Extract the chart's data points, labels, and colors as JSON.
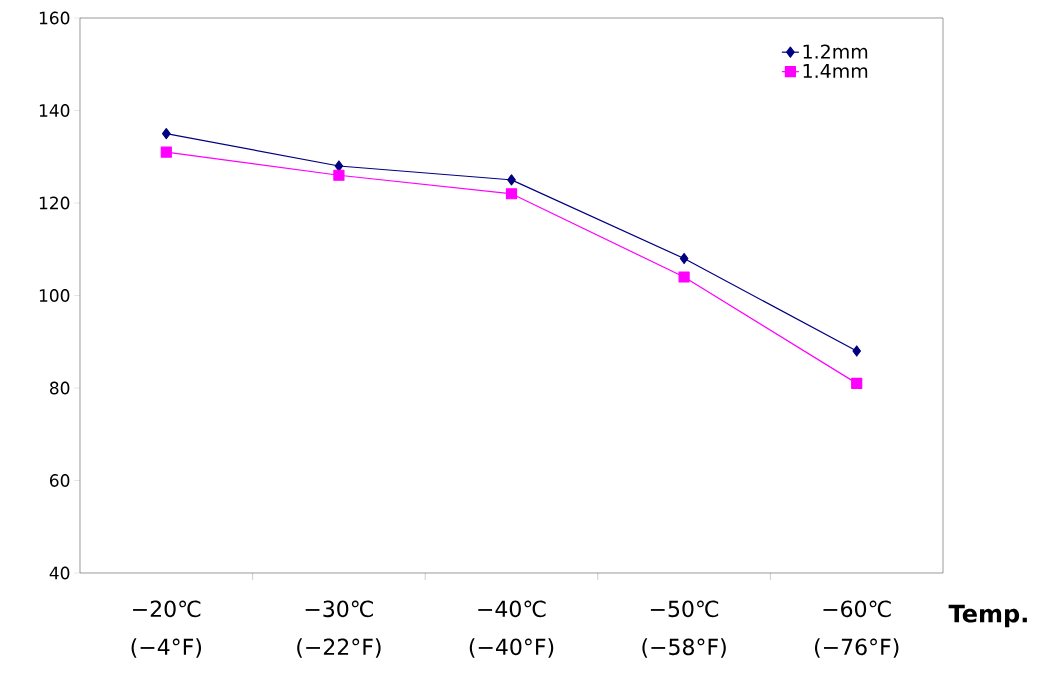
{
  "chart_data": {
    "type": "line",
    "xlabel": "Temp.",
    "categories": [
      "−20℃ (−4°F)",
      "−30℃ (−22°F)",
      "−40℃ (−40°F)",
      "−50℃ (−58°F)",
      "−60℃ (−76°F)"
    ],
    "series": [
      {
        "name": "1.2mm",
        "color": "#000080",
        "marker": "diamond",
        "values": [
          135,
          128,
          125,
          108,
          88
        ]
      },
      {
        "name": "1.4mm",
        "color": "#ff00ff",
        "marker": "square",
        "values": [
          131,
          126,
          122,
          104,
          81
        ]
      }
    ],
    "ylim": [
      40,
      160
    ],
    "yticks": [
      40,
      60,
      80,
      100,
      120,
      140,
      160
    ],
    "grid": false,
    "legend": "top right",
    "line_style": "solid"
  }
}
